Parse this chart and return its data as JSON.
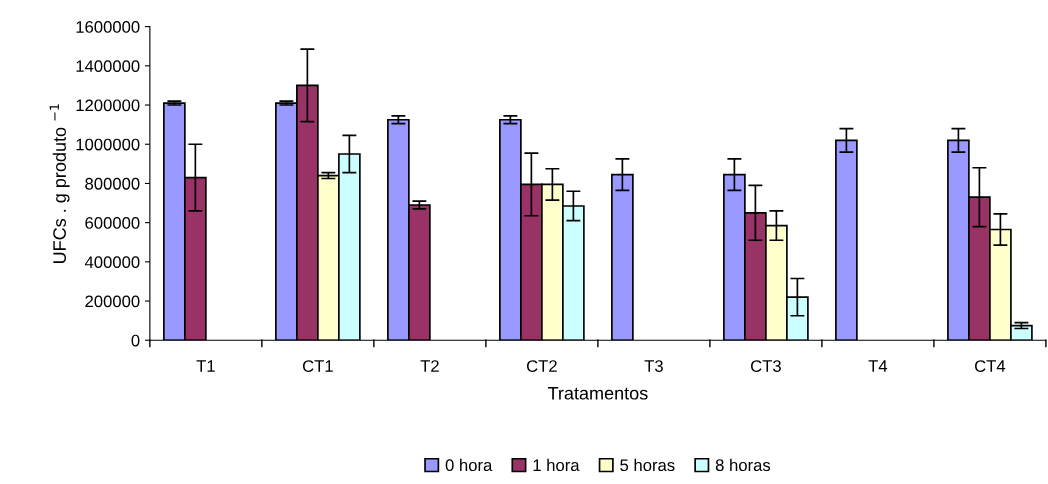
{
  "chart_data": {
    "type": "bar",
    "xlabel": "Tratamentos",
    "ylabel": "UFCs . g produto $^{−1}$",
    "categories": [
      "T1",
      "CT1",
      "T2",
      "CT2",
      "T3",
      "CT3",
      "T4",
      "CT4"
    ],
    "series": [
      {
        "name": "0 hora",
        "color": "#9999ff",
        "values": [
          1210000,
          1210000,
          1125000,
          1125000,
          845000,
          845000,
          1020000,
          1020000
        ],
        "errors": [
          10000,
          10000,
          20000,
          20000,
          80000,
          80000,
          60000,
          60000
        ]
      },
      {
        "name": "1 hora",
        "color": "#993366",
        "values": [
          830000,
          1300000,
          690000,
          795000,
          null,
          650000,
          null,
          730000
        ],
        "errors": [
          170000,
          185000,
          20000,
          160000,
          null,
          140000,
          null,
          150000
        ]
      },
      {
        "name": "5 horas",
        "color": "#ffffcc",
        "values": [
          null,
          840000,
          null,
          795000,
          null,
          585000,
          null,
          565000
        ],
        "errors": [
          null,
          15000,
          null,
          80000,
          null,
          75000,
          null,
          80000
        ]
      },
      {
        "name": "8 horas",
        "color": "#ccffff",
        "values": [
          null,
          950000,
          null,
          685000,
          null,
          220000,
          null,
          75000
        ],
        "errors": [
          null,
          95000,
          null,
          75000,
          null,
          95000,
          null,
          15000
        ]
      }
    ],
    "ylim": [
      0,
      1600000
    ],
    "yticks": [
      0,
      200000,
      400000,
      600000,
      800000,
      1000000,
      1200000,
      1400000,
      1600000
    ],
    "grid": false,
    "legend": "bottom"
  }
}
